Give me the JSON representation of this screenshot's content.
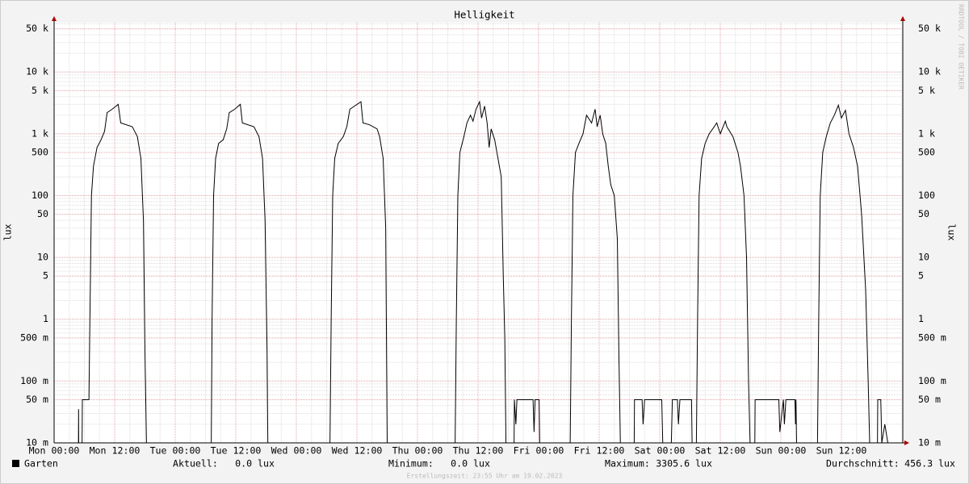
{
  "chart_data": {
    "type": "line",
    "title": "Helligkeit",
    "y_label": "lux",
    "y2_label": "lux",
    "watermark": "RRDTOOL / TOBI OETIKER",
    "footer": "Erstellungszeit: 23:55 Uhr am 19.02.2023",
    "log_scale": true,
    "grid": true,
    "xlim": [
      0,
      168
    ],
    "xticks": [
      {
        "value": 0,
        "label": "Mon 00:00"
      },
      {
        "value": 12,
        "label": "Mon 12:00"
      },
      {
        "value": 24,
        "label": "Tue 00:00"
      },
      {
        "value": 36,
        "label": "Tue 12:00"
      },
      {
        "value": 48,
        "label": "Wed 00:00"
      },
      {
        "value": 60,
        "label": "Wed 12:00"
      },
      {
        "value": 72,
        "label": "Thu 00:00"
      },
      {
        "value": 84,
        "label": "Thu 12:00"
      },
      {
        "value": 96,
        "label": "Fri 00:00"
      },
      {
        "value": 108,
        "label": "Fri 12:00"
      },
      {
        "value": 120,
        "label": "Sat 00:00"
      },
      {
        "value": 132,
        "label": "Sat 12:00"
      },
      {
        "value": 144,
        "label": "Sun 00:00"
      },
      {
        "value": 156,
        "label": "Sun 12:00"
      }
    ],
    "ylim": [
      0.01,
      63000
    ],
    "yticks": [
      {
        "value": 0.01,
        "label": "10 m"
      },
      {
        "value": 0.05,
        "label": "50 m"
      },
      {
        "value": 0.1,
        "label": "100 m"
      },
      {
        "value": 0.5,
        "label": "500 m"
      },
      1,
      5,
      10,
      50,
      100,
      500,
      {
        "value": 1000,
        "label": "1 k"
      },
      {
        "value": 5000,
        "label": "5 k"
      },
      {
        "value": 10000,
        "label": "10 k"
      },
      {
        "value": 50000,
        "label": "50 k"
      }
    ],
    "series": [
      {
        "name": "Garten",
        "color": "#000000",
        "x": [
          0,
          4.8,
          4.85,
          4.9,
          5.5,
          5.6,
          6.9,
          7.2,
          7.4,
          7.8,
          8.5,
          9.3,
          10.0,
          10.5,
          11.5,
          12.7,
          13.2,
          15.5,
          16.5,
          17.2,
          17.7,
          18.0,
          18.3,
          18.5,
          31.1,
          31.3,
          31.6,
          32.0,
          32.6,
          33.5,
          34.2,
          34.7,
          35.8,
          36.9,
          37.3,
          39.6,
          40.6,
          41.3,
          41.8,
          42.2,
          42.4,
          54.6,
          54.9,
          55.2,
          55.6,
          56.3,
          57.3,
          58.0,
          58.6,
          60.8,
          61.2,
          62.5,
          64.0,
          64.5,
          65.2,
          65.7,
          66.0,
          66.2,
          79.4,
          79.7,
          80.0,
          80.4,
          81.2,
          81.8,
          82.5,
          83.0,
          83.6,
          84.3,
          84.7,
          85.3,
          85.8,
          86.2,
          86.6,
          87.3,
          88.6,
          89.0,
          89.3,
          89.6,
          91.1,
          91.2,
          91.5,
          91.7,
          94.9,
          95.1,
          95.3,
          96.1,
          96.3,
          102.2,
          102.5,
          102.8,
          103.3,
          104.0,
          104.8,
          105.5,
          106.5,
          107.2,
          107.6,
          108.2,
          108.7,
          109.3,
          109.8,
          110.3,
          111.0,
          111.6,
          111.9,
          112.2,
          114.9,
          115.0,
          116.5,
          116.7,
          117.0,
          120.4,
          120.6,
          122.3,
          122.5,
          123.5,
          123.7,
          124.0,
          126.3,
          126.5,
          127.2,
          127.5,
          127.8,
          128.3,
          129.0,
          129.8,
          130.5,
          131.3,
          132.0,
          133.0,
          133.3,
          134.5,
          135.5,
          136.0,
          136.7,
          137.2,
          137.6,
          137.9,
          138.8,
          138.9,
          143.6,
          143.8,
          144.5,
          144.7,
          145.0,
          146.8,
          146.9,
          147.0,
          147.2,
          151.2,
          151.5,
          151.8,
          152.3,
          153.0,
          153.8,
          154.6,
          155.4,
          156.0,
          156.8,
          157.5,
          158.4,
          159.2,
          160.0,
          160.8,
          161.3,
          161.6,
          163.1,
          163.2,
          163.8,
          164.0,
          164.6,
          165.2,
          165.5,
          168
        ],
        "values": [
          0,
          0,
          0.035,
          0,
          0,
          0.05,
          0.05,
          5,
          100,
          300,
          600,
          800,
          1100,
          2200,
          2500,
          3000,
          1500,
          1300,
          900,
          400,
          40,
          0.3,
          0.01,
          0,
          0,
          1,
          100,
          400,
          700,
          800,
          1200,
          2200,
          2500,
          3000,
          1500,
          1300,
          900,
          400,
          40,
          0.3,
          0,
          0,
          1,
          100,
          400,
          700,
          900,
          1300,
          2500,
          3300,
          1500,
          1400,
          1200,
          900,
          400,
          30,
          0.01,
          0,
          0,
          1,
          100,
          500,
          900,
          1500,
          2000,
          1600,
          2500,
          3300,
          1800,
          2800,
          1500,
          600,
          1200,
          800,
          200,
          5,
          0.5,
          0,
          0,
          0.05,
          0.02,
          0.05,
          0.05,
          0.015,
          0.05,
          0.05,
          0,
          0,
          1,
          100,
          500,
          700,
          1000,
          2000,
          1500,
          2500,
          1300,
          2000,
          1000,
          700,
          300,
          150,
          100,
          20,
          0.3,
          0.01,
          0,
          0.05,
          0.05,
          0.02,
          0.05,
          0.05,
          0.01,
          0.01,
          0.05,
          0.05,
          0.02,
          0.05,
          0.05,
          0,
          0,
          1,
          100,
          400,
          700,
          1000,
          1200,
          1500,
          1000,
          1600,
          1300,
          900,
          500,
          300,
          100,
          10,
          0.1,
          0.01,
          0,
          0.05,
          0.05,
          0.015,
          0.05,
          0.02,
          0.05,
          0.05,
          0.02,
          0.05,
          0,
          0,
          1,
          100,
          500,
          900,
          1500,
          2000,
          2900,
          1800,
          2400,
          1000,
          600,
          300,
          50,
          3,
          0.1,
          0.01,
          0,
          0.05,
          0.05,
          0.01,
          0.02,
          0.01,
          0,
          0
        ]
      }
    ],
    "stats": [
      {
        "label": "Aktuell:",
        "value": "0.0 lux"
      },
      {
        "label": "Minimum:",
        "value": "0.0 lux"
      },
      {
        "label": "Maximum:",
        "value": "3305.6 lux"
      },
      {
        "label": "Durchschnitt:",
        "value": "456.3 lux"
      }
    ]
  }
}
